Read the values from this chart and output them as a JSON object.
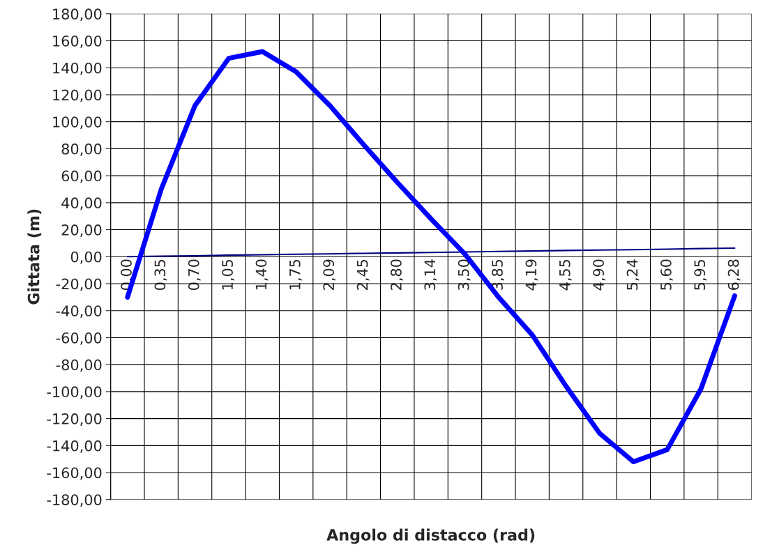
{
  "chart_data": {
    "type": "line",
    "xlabel": "Angolo di distacco (rad)",
    "ylabel": "Gittata (m)",
    "categories": [
      "0,00",
      "0,35",
      "0,70",
      "1,05",
      "1,40",
      "1,75",
      "2,09",
      "2,45",
      "2,80",
      "3,14",
      "3,50",
      "3,85",
      "4,19",
      "4,55",
      "4,90",
      "5,24",
      "5,60",
      "5,95",
      "6,28"
    ],
    "series": [
      {
        "color": "#0000ff",
        "values": [
          -30,
          50,
          112,
          147,
          152,
          137,
          112,
          83,
          55,
          28,
          2,
          -30,
          -58,
          -96,
          -131,
          -152,
          -143,
          -98,
          -29
        ]
      },
      {
        "color": "#000080",
        "values": [
          0,
          0.4,
          0.7,
          1.1,
          1.4,
          1.8,
          2.1,
          2.5,
          2.8,
          3.1,
          3.5,
          3.9,
          4.2,
          4.6,
          4.9,
          5.2,
          5.6,
          6,
          6.3
        ]
      }
    ],
    "ylim": [
      -180,
      180
    ],
    "yticks": [
      {
        "value": -180,
        "label": "-180,00"
      },
      {
        "value": -160,
        "label": "-160,00"
      },
      {
        "value": -140,
        "label": "-140,00"
      },
      {
        "value": -120,
        "label": "-120,00"
      },
      {
        "value": -100,
        "label": "-100,00"
      },
      {
        "value": -80,
        "label": "-80,00"
      },
      {
        "value": -60,
        "label": "-60,00"
      },
      {
        "value": -40,
        "label": "-40,00"
      },
      {
        "value": -20,
        "label": "-20,00"
      },
      {
        "value": 0,
        "label": "0,00"
      },
      {
        "value": 20,
        "label": "20,00"
      },
      {
        "value": 40,
        "label": "40,00"
      },
      {
        "value": 60,
        "label": "60,00"
      },
      {
        "value": 80,
        "label": "80,00"
      },
      {
        "value": 100,
        "label": "100,00"
      },
      {
        "value": 120,
        "label": "120,00"
      },
      {
        "value": 140,
        "label": "140,00"
      },
      {
        "value": 160,
        "label": "160,00"
      },
      {
        "value": 180,
        "label": "180,00"
      }
    ],
    "grid": true,
    "legend": false,
    "marker": "none",
    "line_style": "solid"
  }
}
